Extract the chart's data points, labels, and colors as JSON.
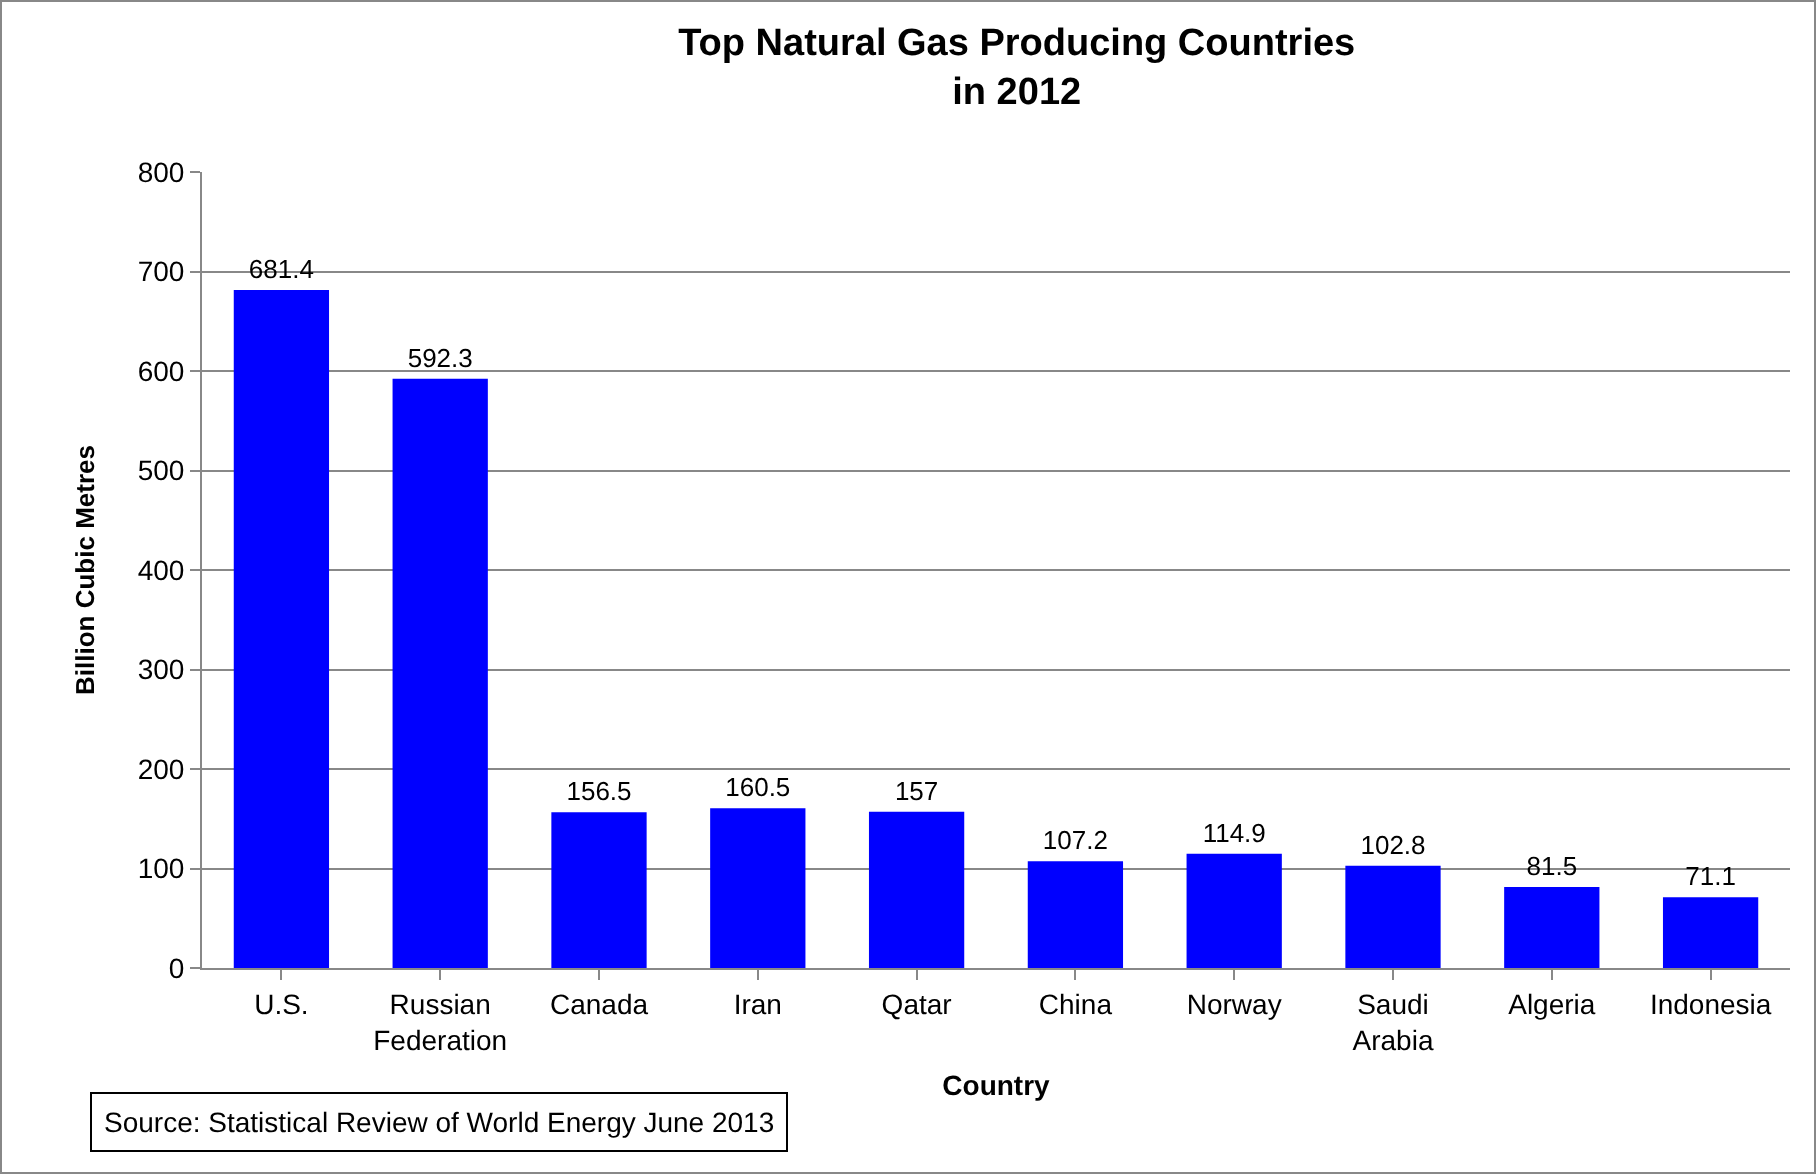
{
  "chart_data": {
    "type": "bar",
    "title": "Top Natural Gas Producing Countries in 2012",
    "xlabel": "Country",
    "ylabel": "Billion Cubic Metres",
    "categories": [
      "U.S.",
      "Russian Federation",
      "Canada",
      "Iran",
      "Qatar",
      "China",
      "Norway",
      "Saudi Arabia",
      "Algeria",
      "Indonesia"
    ],
    "values": [
      681.4,
      592.3,
      156.5,
      160.5,
      157,
      107.2,
      114.9,
      102.8,
      81.5,
      71.1
    ],
    "color": "#0000ff",
    "data_labels": true,
    "ylim": [
      0,
      800
    ],
    "yticks": [
      0,
      100,
      200,
      300,
      400,
      500,
      600,
      700,
      800
    ],
    "grid": "y",
    "annotations": [
      "Source: Statistical Review of World Energy June 2013"
    ]
  }
}
